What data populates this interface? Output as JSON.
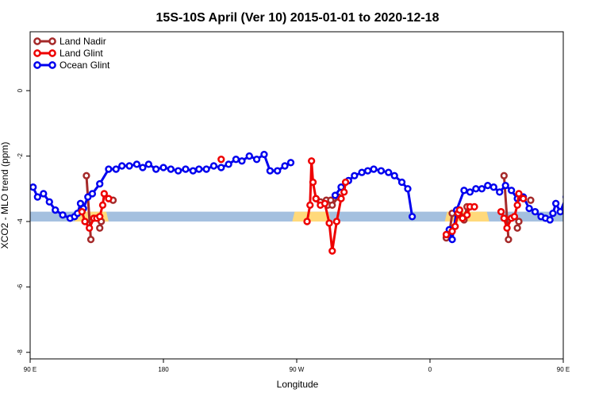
{
  "chart_data": {
    "type": "line",
    "title": "15S-10S April (Ver 10)   2015-01-01 to 2020-12-18",
    "xlabel": "Longitude",
    "ylabel": "XCO2 - MLO trend (ppm)",
    "xlim": [
      90,
      450
    ],
    "ylim": [
      -8.2,
      1.8
    ],
    "x_ticks": [
      {
        "value": 90,
        "label": "90 E"
      },
      {
        "value": 180,
        "label": "180"
      },
      {
        "value": 270,
        "label": "90 W"
      },
      {
        "value": 360,
        "label": "0"
      },
      {
        "value": 450,
        "label": "90 E"
      },
      {
        "value": 540,
        "label": "180"
      }
    ],
    "y_ticks": [
      {
        "value": 0,
        "label": "0"
      },
      {
        "value": -2,
        "label": "-2"
      },
      {
        "value": -4,
        "label": "-4"
      },
      {
        "value": -6,
        "label": "-6"
      },
      {
        "value": -8,
        "label": "-8"
      }
    ],
    "x_axis_max": 540,
    "legend_position": "top-left",
    "band": {
      "y_low": -4.0,
      "y_high": -3.7,
      "ocean_color": "#a4c0df",
      "land_color": "#ffd97a",
      "land_ranges": [
        [
          120,
          143
        ],
        [
          267,
          293
        ],
        [
          370,
          400
        ],
        [
          480,
          503
        ]
      ]
    },
    "series": [
      {
        "name": "Land Nadir",
        "color": "#a52a2a",
        "segments": [
          [
            [
              128,
              -2.6
            ],
            [
              131,
              -4.55
            ]
          ],
          [
            [
              137,
              -4.2
            ],
            [
              138,
              -4.0
            ]
          ],
          [
            [
              143,
              -3.3
            ],
            [
              146,
              -3.35
            ]
          ],
          [
            [
              283,
              -3.3
            ],
            [
              286,
              -3.4
            ],
            [
              290,
              -3.35
            ],
            [
              291,
              -3.5
            ],
            [
              293,
              -3.35
            ]
          ],
          [
            [
              298,
              -3.25
            ],
            [
              294,
              -3.5
            ]
          ],
          [
            [
              371,
              -4.5
            ],
            [
              373,
              -4.4
            ],
            [
              375,
              -3.75
            ]
          ],
          [
            [
              380,
              -3.8
            ],
            [
              383,
              -3.95
            ],
            [
              385,
              -3.55
            ]
          ],
          [
            [
              410,
              -2.6
            ],
            [
              413,
              -4.55
            ]
          ],
          [
            [
              419,
              -4.2
            ],
            [
              420,
              -4.0
            ]
          ],
          [
            [
              428,
              -3.35
            ]
          ]
        ]
      },
      {
        "name": "Land Glint",
        "color": "#ee0000",
        "segments": [
          [
            [
              125,
              -3.7
            ],
            [
              127,
              -4.0
            ],
            [
              130,
              -4.2
            ],
            [
              133,
              -3.9
            ],
            [
              135,
              -3.9
            ],
            [
              137,
              -3.85
            ],
            [
              139,
              -3.5
            ],
            [
              140,
              -3.15
            ],
            [
              143,
              -3.3
            ]
          ],
          [
            [
              219,
              -2.1
            ]
          ],
          [
            [
              277,
              -4.0
            ],
            [
              279,
              -3.5
            ],
            [
              280,
              -2.15
            ],
            [
              281,
              -2.8
            ],
            [
              283,
              -3.3
            ],
            [
              286,
              -3.5
            ]
          ],
          [
            [
              289,
              -3.45
            ],
            [
              292,
              -4.05
            ],
            [
              294,
              -4.9
            ],
            [
              297,
              -4.0
            ],
            [
              300,
              -3.3
            ],
            [
              302,
              -3.1
            ],
            [
              303,
              -2.8
            ]
          ],
          [
            [
              371,
              -4.4
            ],
            [
              375,
              -4.3
            ],
            [
              377,
              -4.15
            ],
            [
              379,
              -3.75
            ],
            [
              380,
              -3.65
            ],
            [
              382,
              -3.9
            ],
            [
              385,
              -3.8
            ],
            [
              387,
              -3.55
            ],
            [
              390,
              -3.55
            ]
          ],
          [
            [
              408,
              -3.7
            ],
            [
              410,
              -3.9
            ],
            [
              412,
              -4.2
            ],
            [
              415,
              -3.9
            ],
            [
              417,
              -3.85
            ],
            [
              419,
              -3.5
            ],
            [
              420,
              -3.15
            ],
            [
              423,
              -3.3
            ]
          ]
        ]
      },
      {
        "name": "Ocean Glint",
        "color": "#0000ee",
        "segments": [
          [
            [
              92,
              -2.95
            ],
            [
              95,
              -3.25
            ],
            [
              99,
              -3.15
            ],
            [
              103,
              -3.4
            ],
            [
              107,
              -3.65
            ],
            [
              112,
              -3.8
            ],
            [
              117,
              -3.9
            ],
            [
              120,
              -3.85
            ],
            [
              122,
              -3.75
            ],
            [
              124,
              -3.45
            ],
            [
              126,
              -3.6
            ],
            [
              129,
              -3.25
            ],
            [
              132,
              -3.15
            ],
            [
              137,
              -2.85
            ],
            [
              143,
              -2.4
            ],
            [
              148,
              -2.4
            ],
            [
              152,
              -2.3
            ],
            [
              157,
              -2.3
            ],
            [
              162,
              -2.25
            ],
            [
              166,
              -2.35
            ],
            [
              170,
              -2.25
            ],
            [
              175,
              -2.4
            ],
            [
              180,
              -2.35
            ],
            [
              185,
              -2.4
            ],
            [
              190,
              -2.45
            ],
            [
              195,
              -2.4
            ],
            [
              200,
              -2.45
            ],
            [
              204,
              -2.4
            ],
            [
              209,
              -2.4
            ],
            [
              214,
              -2.3
            ],
            [
              219,
              -2.35
            ],
            [
              224,
              -2.25
            ],
            [
              229,
              -2.1
            ],
            [
              233,
              -2.15
            ],
            [
              238,
              -2.0
            ],
            [
              243,
              -2.1
            ],
            [
              248,
              -1.95
            ],
            [
              252,
              -2.45
            ],
            [
              257,
              -2.45
            ],
            [
              262,
              -2.3
            ],
            [
              266,
              -2.2
            ]
          ],
          [
            [
              296,
              -3.2
            ],
            [
              300,
              -2.95
            ],
            [
              305,
              -2.75
            ],
            [
              309,
              -2.6
            ],
            [
              314,
              -2.5
            ],
            [
              318,
              -2.45
            ],
            [
              322,
              -2.4
            ],
            [
              327,
              -2.45
            ],
            [
              332,
              -2.5
            ],
            [
              336,
              -2.6
            ],
            [
              341,
              -2.8
            ],
            [
              345,
              -3.0
            ],
            [
              348,
              -3.85
            ]
          ],
          [
            [
              373,
              -4.25
            ],
            [
              375,
              -4.55
            ],
            [
              378,
              -3.65
            ],
            [
              383,
              -3.05
            ],
            [
              387,
              -3.1
            ],
            [
              391,
              -3.0
            ],
            [
              395,
              -3.0
            ],
            [
              399,
              -2.9
            ],
            [
              403,
              -2.95
            ],
            [
              407,
              -3.1
            ],
            [
              411,
              -2.9
            ],
            [
              415,
              -3.05
            ],
            [
              419,
              -3.3
            ],
            [
              423,
              -3.25
            ],
            [
              427,
              -3.6
            ],
            [
              431,
              -3.7
            ],
            [
              435,
              -3.85
            ],
            [
              438,
              -3.9
            ],
            [
              441,
              -3.95
            ],
            [
              443,
              -3.75
            ],
            [
              445,
              -3.45
            ],
            [
              448,
              -3.7
            ],
            [
              452,
              -3.25
            ],
            [
              455,
              -3.15
            ],
            [
              459,
              -2.85
            ],
            [
              463,
              -2.4
            ],
            [
              468,
              -2.4
            ],
            [
              472,
              -2.35
            ],
            [
              476,
              -2.3
            ]
          ]
        ]
      }
    ]
  }
}
